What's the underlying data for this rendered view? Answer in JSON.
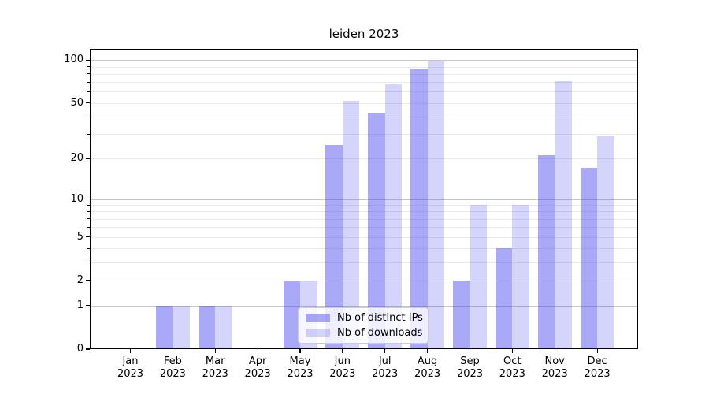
{
  "title": "leiden 2023",
  "chart_data": {
    "type": "bar",
    "title": "leiden 2023",
    "categories": [
      "Jan",
      "Feb",
      "Mar",
      "Apr",
      "May",
      "Jun",
      "Jul",
      "Aug",
      "Sep",
      "Oct",
      "Nov",
      "Dec"
    ],
    "year": "2023",
    "series": [
      {
        "name": "Nb of distinct IPs",
        "color": "rgba(64,64,240,0.45)",
        "values": [
          0,
          1,
          1,
          0,
          2,
          25,
          42,
          86,
          2,
          4,
          21,
          17
        ]
      },
      {
        "name": "Nb of downloads",
        "color": "rgba(64,64,240,0.22)",
        "values": [
          0,
          1,
          1,
          0,
          2,
          52,
          68,
          98,
          9,
          9,
          71,
          29
        ]
      }
    ],
    "y_axis": {
      "scale": "log1p",
      "ylim": [
        0,
        120
      ],
      "ticks": [
        0,
        1,
        2,
        5,
        10,
        20,
        50,
        100
      ],
      "major_gridlines": [
        1,
        10,
        100
      ],
      "minor_gridlines": [
        2,
        3,
        4,
        5,
        6,
        7,
        8,
        9,
        20,
        30,
        40,
        50,
        60,
        70,
        80,
        90
      ]
    },
    "grid": {
      "major_color": "#c6c6c6",
      "minor_color": "#eaeaea"
    },
    "legend": {
      "position": "lower center-left",
      "background": "rgba(255,255,255,0.8)",
      "border": "#cccccc"
    }
  }
}
